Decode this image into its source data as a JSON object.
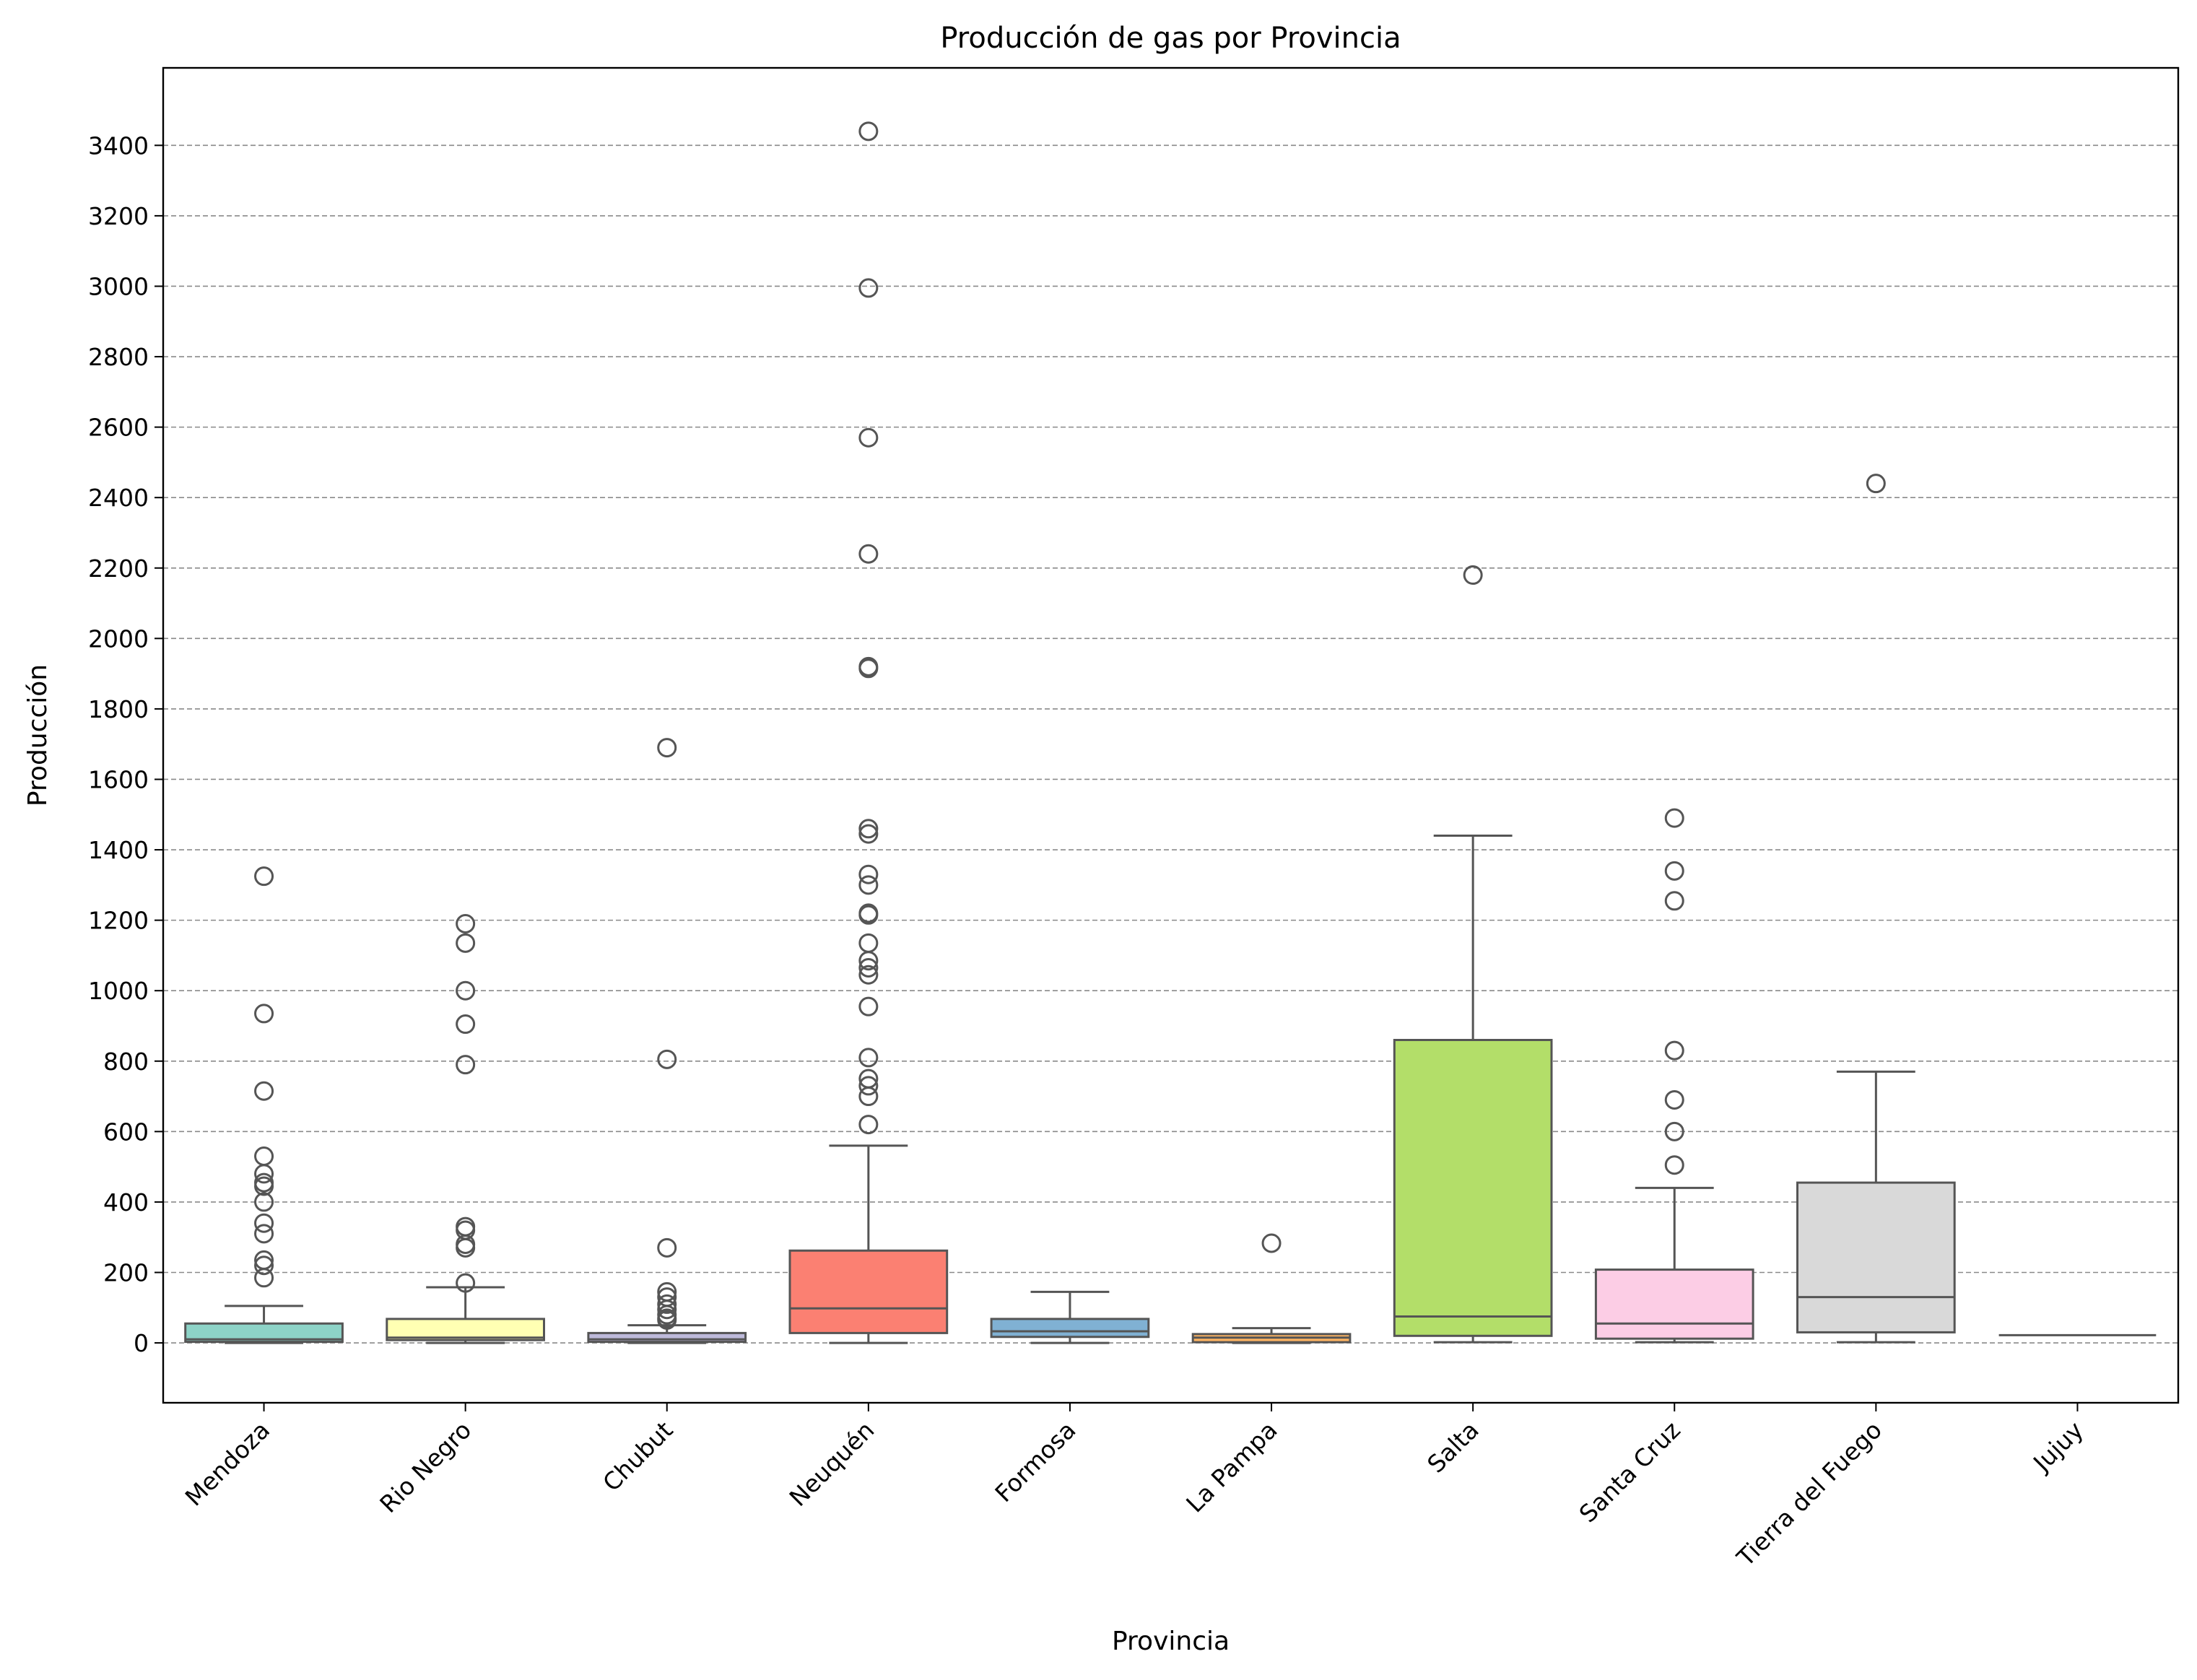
{
  "chart_data": {
    "type": "box",
    "title": "Producción de gas por Provincia",
    "xlabel": "Provincia",
    "ylabel": "Producción",
    "ylim": [
      -170,
      3620
    ],
    "yticks": [
      0,
      200,
      400,
      600,
      800,
      1000,
      1200,
      1400,
      1600,
      1800,
      2000,
      2200,
      2400,
      2600,
      2800,
      3000,
      3200,
      3400
    ],
    "grid": "horizontal dashed",
    "categories": [
      "Mendoza",
      "Rio Negro",
      "Chubut",
      "Neuquén",
      "Formosa",
      "La Pampa",
      "Salta",
      "Santa Cruz",
      "Tierra del Fuego",
      "Jujuy"
    ],
    "boxes": [
      {
        "category": "Mendoza",
        "color": "#8dd3c7",
        "whisker_low": 0,
        "q1": 3,
        "median": 10,
        "q3": 55,
        "whisker_high": 105,
        "outliers": [
          1325,
          935,
          715,
          530,
          480,
          455,
          445,
          400,
          340,
          310,
          235,
          220,
          185
        ]
      },
      {
        "category": "Rio Negro",
        "color": "#ffffb3",
        "whisker_low": 0,
        "q1": 8,
        "median": 15,
        "q3": 68,
        "whisker_high": 158,
        "outliers": [
          1190,
          1135,
          1000,
          905,
          790,
          330,
          320,
          280,
          270,
          170
        ]
      },
      {
        "category": "Chubut",
        "color": "#bebada",
        "whisker_low": 0,
        "q1": 3,
        "median": 10,
        "q3": 28,
        "whisker_high": 50,
        "outliers": [
          1690,
          805,
          270,
          145,
          130,
          110,
          95,
          80,
          70,
          65
        ]
      },
      {
        "category": "Neuquén",
        "color": "#fb8072",
        "whisker_low": 0,
        "q1": 28,
        "median": 98,
        "q3": 262,
        "whisker_high": 560,
        "outliers": [
          3440,
          2995,
          2570,
          2240,
          1920,
          1915,
          1460,
          1445,
          1330,
          1300,
          1220,
          1215,
          1135,
          1085,
          1065,
          1045,
          955,
          810,
          750,
          730,
          700,
          620
        ]
      },
      {
        "category": "Formosa",
        "color": "#80b1d3",
        "whisker_low": 0,
        "q1": 17,
        "median": 33,
        "q3": 68,
        "whisker_high": 145,
        "outliers": []
      },
      {
        "category": "La Pampa",
        "color": "#fdb462",
        "whisker_low": 0,
        "q1": 2,
        "median": 15,
        "q3": 25,
        "whisker_high": 42,
        "outliers": [
          283
        ]
      },
      {
        "category": "Salta",
        "color": "#b3de69",
        "whisker_low": 2,
        "q1": 20,
        "median": 75,
        "q3": 860,
        "whisker_high": 1440,
        "outliers": [
          2180
        ]
      },
      {
        "category": "Santa Cruz",
        "color": "#fccde5",
        "whisker_low": 2,
        "q1": 12,
        "median": 55,
        "q3": 208,
        "whisker_high": 440,
        "outliers": [
          1490,
          1340,
          1255,
          830,
          690,
          600,
          505
        ]
      },
      {
        "category": "Tierra del Fuego",
        "color": "#d9d9d9",
        "whisker_low": 2,
        "q1": 30,
        "median": 130,
        "q3": 455,
        "whisker_high": 770,
        "outliers": [
          2440
        ]
      },
      {
        "category": "Jujuy",
        "color": "#bc80bd",
        "whisker_low": 22,
        "q1": 22,
        "median": 22,
        "q3": 22,
        "whisker_high": 22,
        "outliers": []
      }
    ]
  }
}
